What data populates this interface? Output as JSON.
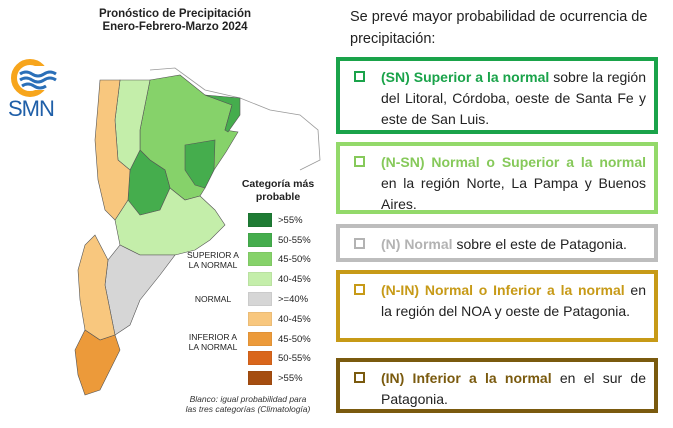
{
  "map": {
    "title_line1": "Pronóstico de Precipitación",
    "title_line2": "Enero-Febrero-Marzo 2024",
    "logo_text": "SMN",
    "footnote_line1": "Blanco: igual probabilidad para",
    "footnote_line2": "las tres categorías (Climatología)"
  },
  "legend": {
    "title_line1": "Categoría más",
    "title_line2": "probable",
    "group_superior_line1": "SUPERIOR A",
    "group_superior_line2": "LA NORMAL",
    "group_normal": "NORMAL",
    "group_inferior_line1": "INFERIOR A",
    "group_inferior_line2": "LA NORMAL",
    "items": [
      {
        "label": ">55%",
        "color": "#1e7b34"
      },
      {
        "label": "50-55%",
        "color": "#45ad4d"
      },
      {
        "label": "45-50%",
        "color": "#86d26a"
      },
      {
        "label": "40-45%",
        "color": "#c4eeaa"
      },
      {
        "label": ">=40%",
        "color": "#d6d6d6"
      },
      {
        "label": "40-45%",
        "color": "#f8c77e"
      },
      {
        "label": "45-50%",
        "color": "#ec9a3a"
      },
      {
        "label": "50-55%",
        "color": "#d9661c"
      },
      {
        "label": ">55%",
        "color": "#a54d10"
      }
    ]
  },
  "intro": "Se prevé mayor probabilidad de ocurrencia de precipitación:",
  "boxes": [
    {
      "highlight": "(SN) Superior a la normal",
      "rest": " sobre la región del Litoral, Córdoba, oeste de Santa Fe y este de San Luis.",
      "border_color": "#1aa34a",
      "text_color": "#1aa34a"
    },
    {
      "highlight": "(N-SN) Normal o Superior a la normal",
      "rest": " en la región Norte, La Pampa y Buenos Aires.",
      "border_color": "#93d96a",
      "text_color": "#86c95a"
    },
    {
      "highlight": "(N) Normal",
      "rest": "  sobre el este de Patagonia.",
      "border_color": "#bdbdbd",
      "text_color": "#b3b3b3"
    },
    {
      "highlight": "(N-IN) Normal o Inferior a la normal",
      "rest": " en la región del NOA y oeste de Patagonia.",
      "border_color": "#c79a17",
      "text_color": "#c79a17"
    },
    {
      "highlight": "(IN) Inferior a la normal",
      "rest": "  en el sur de Patagonia.",
      "border_color": "#7a5a0e",
      "text_color": "#7a5a0e"
    }
  ]
}
